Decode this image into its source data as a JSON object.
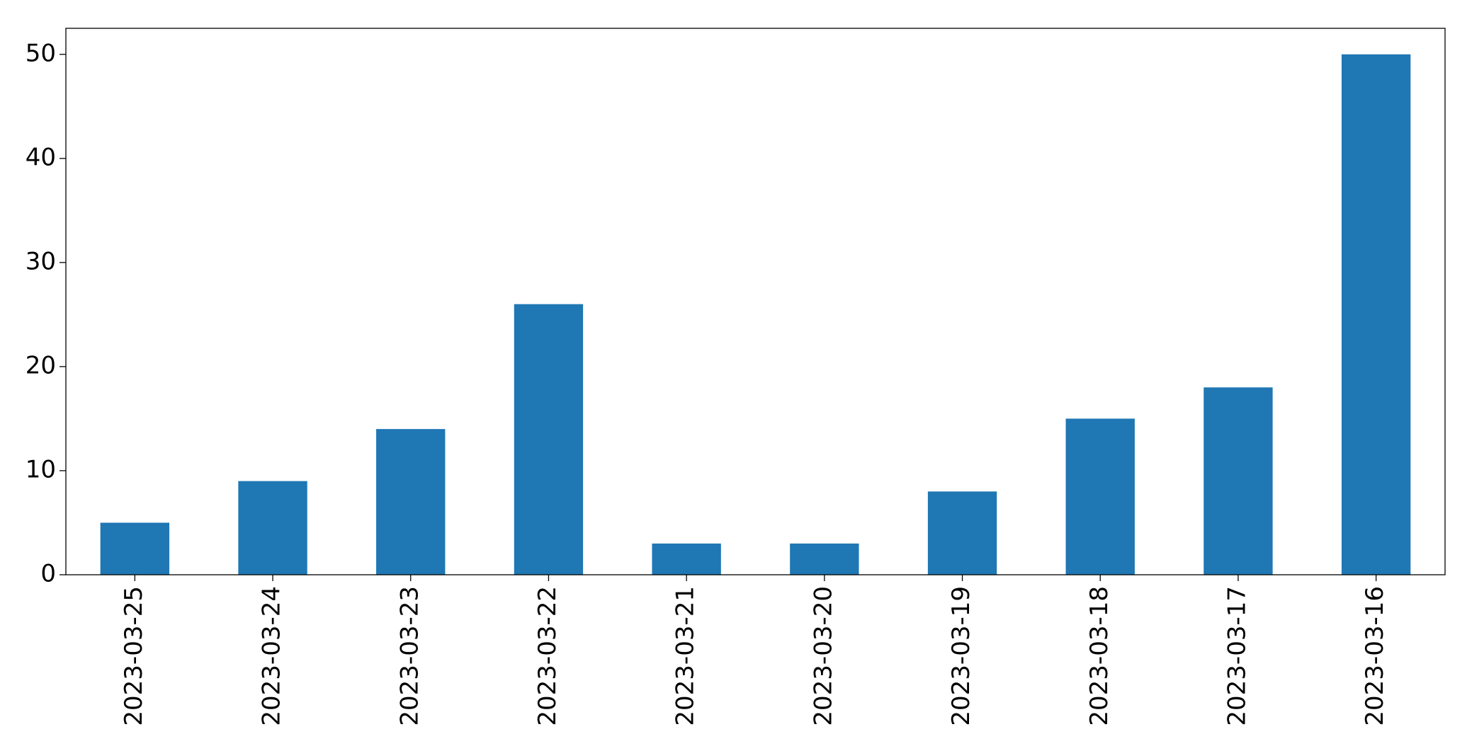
{
  "chart_data": {
    "type": "bar",
    "categories": [
      "2023-03-25",
      "2023-03-24",
      "2023-03-23",
      "2023-03-22",
      "2023-03-21",
      "2023-03-20",
      "2023-03-19",
      "2023-03-18",
      "2023-03-17",
      "2023-03-16"
    ],
    "values": [
      5,
      9,
      14,
      26,
      3,
      3,
      8,
      15,
      18,
      50
    ],
    "color": "#1f77b4",
    "ylim": [
      0,
      52.5
    ],
    "yticks": [
      0,
      10,
      20,
      30,
      40,
      50
    ],
    "grid": false
  }
}
